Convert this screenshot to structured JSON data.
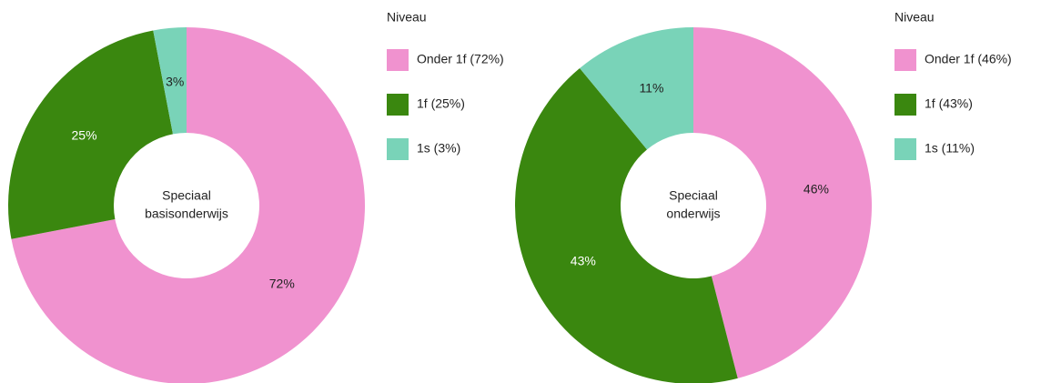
{
  "chart_data": [
    {
      "type": "donut",
      "legend_title": "Niveau",
      "center_label": [
        "Speciaal",
        "basisonderwijs"
      ],
      "categories": [
        "Onder 1f (72%)",
        "1f (25%)",
        "1s (3%)"
      ],
      "values": [
        72,
        25,
        3
      ],
      "value_labels": [
        "72%",
        "25%",
        "3%"
      ],
      "colors": [
        "#f092cf",
        "#3a870f",
        "#79d3b8"
      ]
    },
    {
      "type": "donut",
      "legend_title": "Niveau",
      "center_label": [
        "Speciaal",
        "onderwijs"
      ],
      "categories": [
        "Onder 1f (46%)",
        "1f (43%)",
        "1s (11%)"
      ],
      "values": [
        46,
        43,
        11
      ],
      "value_labels": [
        "46%",
        "43%",
        "11%"
      ],
      "colors": [
        "#f092cf",
        "#3a870f",
        "#79d3b8"
      ]
    }
  ]
}
